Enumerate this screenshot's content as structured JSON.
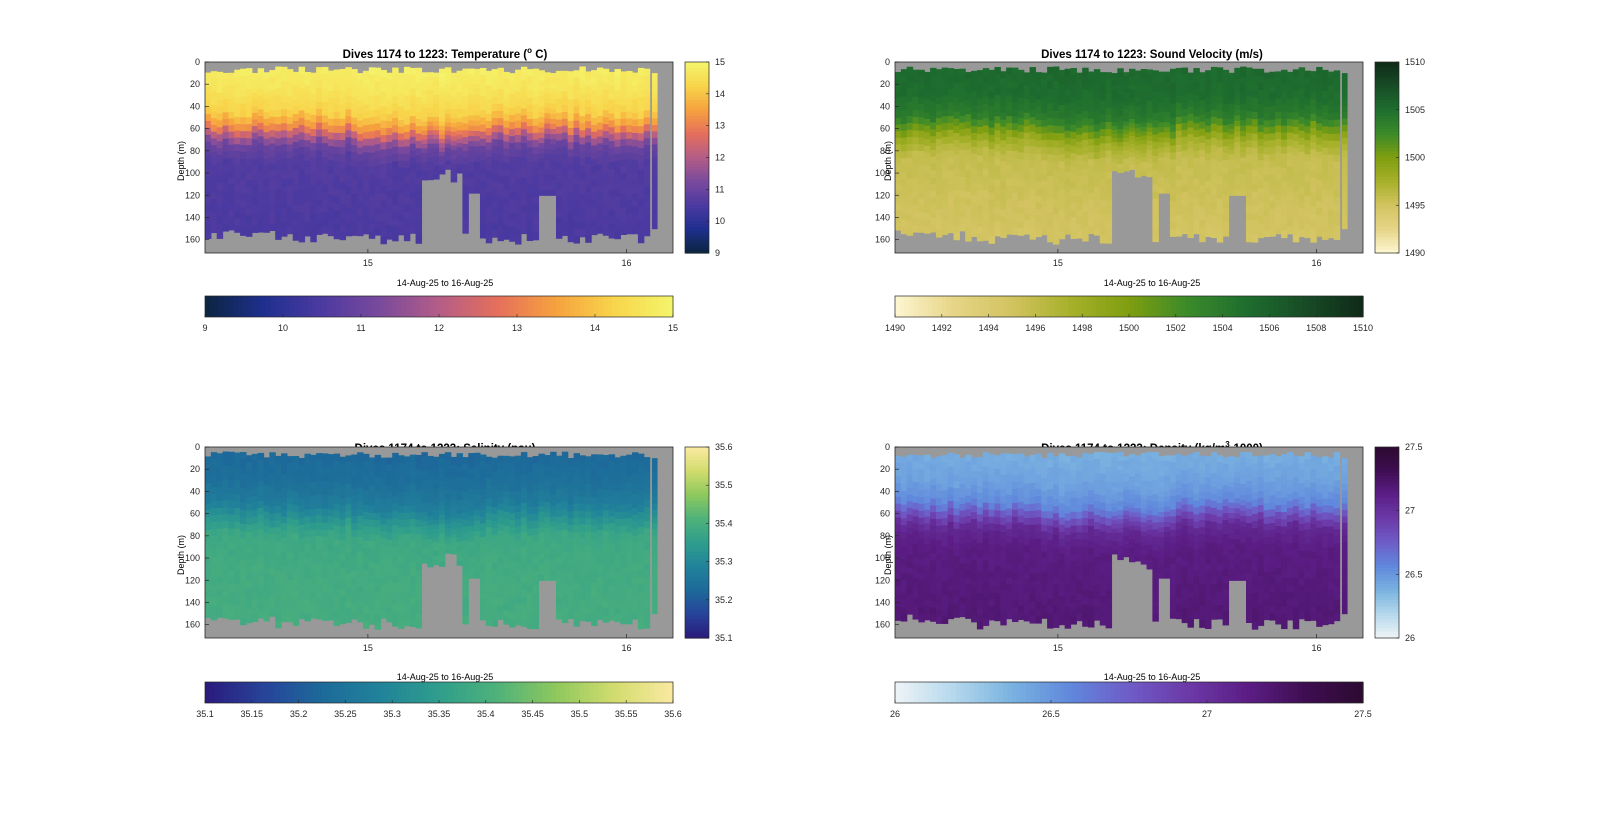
{
  "figure": {
    "background": "#ffffff",
    "gap_color": "#999999"
  },
  "chart_data": [
    {
      "type": "heatmap",
      "id": "temperature",
      "title": "Dives 1174 to 1223: Temperature (",
      "title_sup": "o",
      "title_tail": " C)",
      "xlabel": "14-Aug-25 to 16-Aug-25",
      "ylabel": "Depth (m)",
      "x_ticks": [
        "15",
        "16"
      ],
      "x_tick_days": [
        15,
        16
      ],
      "xlim_days": [
        14.37,
        16.18
      ],
      "ylim": [
        0,
        172
      ],
      "y_ticks": [
        0,
        20,
        40,
        60,
        80,
        100,
        120,
        140,
        160
      ],
      "colormap": [
        "#0b2540",
        "#1f2f8f",
        "#4c3aa1",
        "#7a4a9c",
        "#b45d87",
        "#e56f5c",
        "#f6a23e",
        "#f8d54b",
        "#f4f56c"
      ],
      "clim": [
        9,
        15
      ],
      "colorbar_ticks": [
        9,
        10,
        11,
        12,
        13,
        14,
        15
      ],
      "horizontal_colorbar_ticks": [
        9,
        10,
        11,
        12,
        13,
        14,
        15
      ],
      "profile": [
        [
          0,
          14.9
        ],
        [
          25,
          14.6
        ],
        [
          45,
          14.2
        ],
        [
          58,
          13.2
        ],
        [
          66,
          12.0
        ],
        [
          75,
          11.0
        ],
        [
          90,
          10.6
        ],
        [
          172,
          10.45
        ]
      ]
    },
    {
      "type": "heatmap",
      "id": "sound_velocity",
      "title": "Dives 1174 to 1223: Sound Velocity (m/s)",
      "xlabel": "14-Aug-25 to 16-Aug-25",
      "ylabel": "Depth (m)",
      "x_ticks": [
        "15",
        "16"
      ],
      "x_tick_days": [
        15,
        16
      ],
      "xlim_days": [
        14.37,
        16.18
      ],
      "ylim": [
        0,
        172
      ],
      "y_ticks": [
        0,
        20,
        40,
        60,
        80,
        100,
        120,
        140,
        160
      ],
      "colormap": [
        "#fdf6d2",
        "#e6d586",
        "#d2c360",
        "#a6b02a",
        "#7f9e10",
        "#3b8a2a",
        "#1e6e2f",
        "#184c26",
        "#0f2a18"
      ],
      "clim": [
        1490,
        1510
      ],
      "colorbar_ticks": [
        1490,
        1495,
        1500,
        1505,
        1510
      ],
      "horizontal_colorbar_ticks": [
        1490,
        1492,
        1494,
        1496,
        1498,
        1500,
        1502,
        1504,
        1506,
        1508,
        1510
      ],
      "profile": [
        [
          0,
          1505.5
        ],
        [
          30,
          1505.0
        ],
        [
          48,
          1503.8
        ],
        [
          60,
          1500.5
        ],
        [
          70,
          1497.8
        ],
        [
          85,
          1495.8
        ],
        [
          172,
          1494.6
        ]
      ]
    },
    {
      "type": "heatmap",
      "id": "salinity",
      "title": "Dives 1174 to 1223: Salinity (psu)",
      "xlabel": "14-Aug-25 to 16-Aug-25",
      "ylabel": "Depth (m)",
      "x_ticks": [
        "15",
        "16"
      ],
      "x_tick_days": [
        15,
        16
      ],
      "xlim_days": [
        14.37,
        16.18
      ],
      "ylim": [
        0,
        172
      ],
      "y_ticks": [
        0,
        20,
        40,
        60,
        80,
        100,
        120,
        140,
        160
      ],
      "colormap": [
        "#2a1a7c",
        "#27439a",
        "#1d6a9a",
        "#21839a",
        "#2f9e8c",
        "#4fb27a",
        "#8ec85d",
        "#d2dc6e",
        "#fbeaa1"
      ],
      "clim": [
        35.1,
        35.6
      ],
      "colorbar_ticks": [
        "35.1",
        "35.2",
        "35.3",
        "35.4",
        "35.5",
        "35.6"
      ],
      "horizontal_colorbar_ticks": [
        "35.1",
        "35.15",
        "35.2",
        "35.25",
        "35.3",
        "35.35",
        "35.4",
        "35.45",
        "35.5",
        "35.55",
        "35.6"
      ],
      "profile": [
        [
          0,
          35.22
        ],
        [
          30,
          35.24
        ],
        [
          50,
          35.27
        ],
        [
          65,
          35.33
        ],
        [
          80,
          35.38
        ],
        [
          110,
          35.39
        ],
        [
          172,
          35.395
        ]
      ]
    },
    {
      "type": "heatmap",
      "id": "density",
      "title": "Dives 1174 to 1223: Density (kg/m",
      "title_sup": "3",
      "title_tail": "-1000)",
      "xlabel": "14-Aug-25 to 16-Aug-25",
      "ylabel": "Depth (m)",
      "x_ticks": [
        "15",
        "16"
      ],
      "x_tick_days": [
        15,
        16
      ],
      "xlim_days": [
        14.37,
        16.18
      ],
      "ylim": [
        0,
        172
      ],
      "y_ticks": [
        0,
        20,
        40,
        60,
        80,
        100,
        120,
        140,
        160
      ],
      "colormap": [
        "#eef4f7",
        "#b5d8ec",
        "#79b2e0",
        "#6088dc",
        "#6e5cc7",
        "#6c3aa8",
        "#5c1e86",
        "#3f0e52",
        "#2c0a30"
      ],
      "clim": [
        26,
        27.5
      ],
      "colorbar_ticks": [
        "26",
        "26.5",
        "27",
        "27.5"
      ],
      "horizontal_colorbar_ticks": [
        "26",
        "26.5",
        "27",
        "27.5"
      ],
      "profile": [
        [
          0,
          26.38
        ],
        [
          30,
          26.45
        ],
        [
          50,
          26.56
        ],
        [
          62,
          26.85
        ],
        [
          72,
          27.05
        ],
        [
          90,
          27.14
        ],
        [
          172,
          27.2
        ]
      ]
    }
  ]
}
